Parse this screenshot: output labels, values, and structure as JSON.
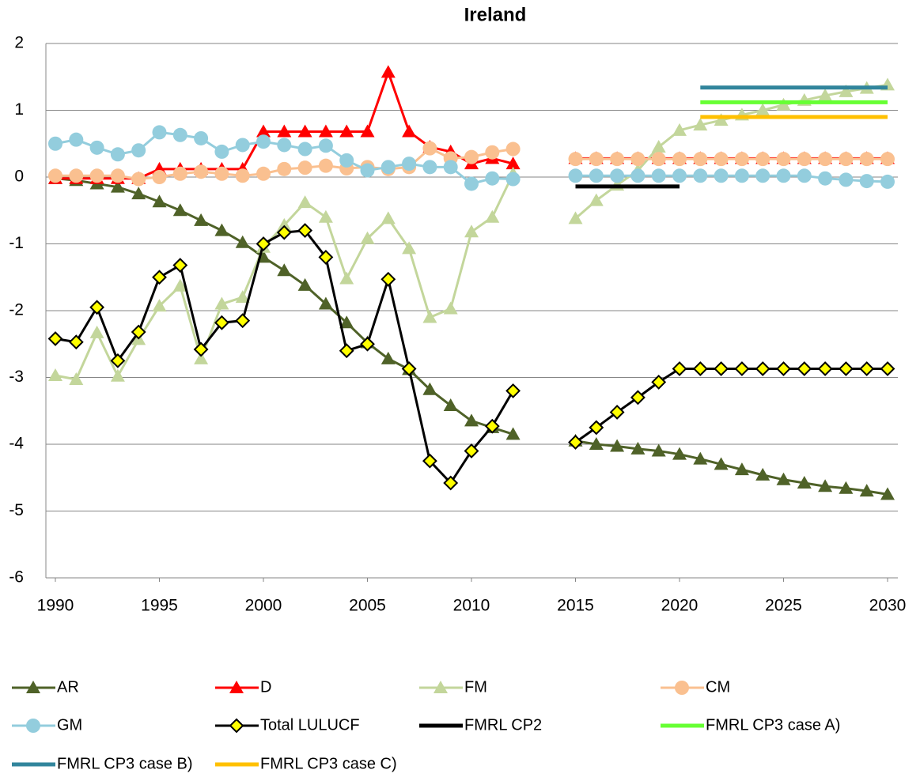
{
  "chart_data": {
    "type": "line",
    "title": "Ireland",
    "x": [
      1990,
      1991,
      1992,
      1993,
      1994,
      1995,
      1996,
      1997,
      1998,
      1999,
      2000,
      2001,
      2002,
      2003,
      2004,
      2005,
      2006,
      2007,
      2008,
      2009,
      2010,
      2011,
      2012,
      2013,
      2014,
      2015,
      2016,
      2017,
      2018,
      2019,
      2020,
      2021,
      2022,
      2023,
      2024,
      2025,
      2026,
      2027,
      2028,
      2029,
      2030
    ],
    "xlim": [
      1990,
      2030
    ],
    "xticks": [
      1990,
      1995,
      2000,
      2005,
      2010,
      2015,
      2020,
      2025,
      2030
    ],
    "ylim": [
      -6,
      2
    ],
    "yticks": [
      -6,
      -5,
      -4,
      -3,
      -2,
      -1,
      0,
      1,
      2
    ],
    "grid": true,
    "series": [
      {
        "name": "AR",
        "color": "#4f6228",
        "marker": "triangle",
        "values": [
          -0.02,
          -0.05,
          -0.1,
          -0.15,
          -0.25,
          -0.37,
          -0.5,
          -0.65,
          -0.8,
          -0.98,
          -1.2,
          -1.4,
          -1.62,
          -1.9,
          -2.18,
          -2.48,
          -2.72,
          -2.88,
          -3.18,
          -3.42,
          -3.65,
          -3.75,
          -3.85,
          null,
          null,
          -3.95,
          -4.0,
          -4.03,
          -4.07,
          -4.1,
          -4.15,
          -4.22,
          -4.3,
          -4.38,
          -4.46,
          -4.53,
          -4.58,
          -4.63,
          -4.66,
          -4.7,
          -4.75
        ]
      },
      {
        "name": "D",
        "color": "#ff0000",
        "marker": "triangle",
        "values": [
          -0.02,
          -0.02,
          -0.02,
          -0.02,
          -0.02,
          0.12,
          0.12,
          0.12,
          0.12,
          0.12,
          0.68,
          0.68,
          0.68,
          0.68,
          0.68,
          0.68,
          1.57,
          0.68,
          0.45,
          0.38,
          0.2,
          0.28,
          0.2,
          null,
          null,
          0.28,
          0.28,
          0.28,
          0.28,
          0.28,
          0.28,
          0.28,
          0.28,
          0.28,
          0.28,
          0.28,
          0.28,
          0.28,
          0.28,
          0.28,
          0.28
        ]
      },
      {
        "name": "FM",
        "color": "#c3d69b",
        "marker": "triangle",
        "values": [
          -2.97,
          -3.03,
          -2.33,
          -2.98,
          -2.43,
          -1.93,
          -1.63,
          -2.72,
          -1.9,
          -1.8,
          -1.05,
          -0.72,
          -0.38,
          -0.6,
          -1.52,
          -0.92,
          -0.62,
          -1.07,
          -2.1,
          -1.97,
          -0.82,
          -0.6,
          0.05,
          null,
          null,
          -0.62,
          -0.35,
          -0.12,
          0.1,
          0.45,
          0.7,
          0.78,
          0.85,
          0.93,
          1.0,
          1.08,
          1.15,
          1.22,
          1.28,
          1.33,
          1.38
        ]
      },
      {
        "name": "CM",
        "color": "#fac090",
        "marker": "circle",
        "values": [
          0.02,
          0.02,
          0.02,
          0.02,
          -0.03,
          0.0,
          0.05,
          0.08,
          0.05,
          0.02,
          0.05,
          0.12,
          0.14,
          0.17,
          0.13,
          0.15,
          0.12,
          0.15,
          0.43,
          0.28,
          0.3,
          0.37,
          0.42,
          null,
          null,
          0.27,
          0.27,
          0.27,
          0.27,
          0.27,
          0.27,
          0.27,
          0.27,
          0.27,
          0.27,
          0.27,
          0.27,
          0.27,
          0.27,
          0.27,
          0.27
        ]
      },
      {
        "name": "GM",
        "color": "#93cddd",
        "marker": "circle",
        "values": [
          0.5,
          0.56,
          0.44,
          0.34,
          0.4,
          0.67,
          0.63,
          0.58,
          0.38,
          0.48,
          0.53,
          0.48,
          0.42,
          0.47,
          0.25,
          0.1,
          0.15,
          0.2,
          0.15,
          0.15,
          -0.1,
          -0.02,
          -0.03,
          null,
          null,
          0.02,
          0.02,
          0.02,
          0.02,
          0.02,
          0.02,
          0.02,
          0.02,
          0.02,
          0.02,
          0.02,
          0.02,
          -0.02,
          -0.04,
          -0.06,
          -0.07
        ]
      },
      {
        "name": "Total LULUCF",
        "color": "#000000",
        "marker": "diamond",
        "marker_fill": "#ffff00",
        "values": [
          -2.42,
          -2.47,
          -1.95,
          -2.75,
          -2.32,
          -1.5,
          -1.32,
          -2.58,
          -2.18,
          -2.15,
          -1.0,
          -0.83,
          -0.8,
          -1.2,
          -2.6,
          -2.5,
          -1.53,
          -2.87,
          -4.25,
          -4.58,
          -4.1,
          -3.73,
          -3.2,
          null,
          null,
          -3.97,
          -3.75,
          -3.52,
          -3.3,
          -3.07,
          -2.87,
          -2.87,
          -2.87,
          -2.87,
          -2.87,
          -2.87,
          -2.87,
          -2.87,
          -2.87,
          -2.87,
          -2.87
        ]
      },
      {
        "name": "FMRL CP2",
        "color": "#000000",
        "marker": "none",
        "values": [
          null,
          null,
          null,
          null,
          null,
          null,
          null,
          null,
          null,
          null,
          null,
          null,
          null,
          null,
          null,
          null,
          null,
          null,
          null,
          null,
          null,
          null,
          null,
          null,
          null,
          -0.14,
          -0.14,
          -0.14,
          -0.14,
          -0.14,
          -0.14,
          null,
          null,
          null,
          null,
          null,
          null,
          null,
          null,
          null,
          null
        ]
      },
      {
        "name": "FMRL CP3 case A)",
        "color": "#66ff33",
        "marker": "none",
        "values": [
          null,
          null,
          null,
          null,
          null,
          null,
          null,
          null,
          null,
          null,
          null,
          null,
          null,
          null,
          null,
          null,
          null,
          null,
          null,
          null,
          null,
          null,
          null,
          null,
          null,
          null,
          null,
          null,
          null,
          null,
          null,
          1.12,
          1.12,
          1.12,
          1.12,
          1.12,
          1.12,
          1.12,
          1.12,
          1.12,
          1.12
        ]
      },
      {
        "name": "FMRL CP3 case B)",
        "color": "#31859c",
        "marker": "none",
        "values": [
          null,
          null,
          null,
          null,
          null,
          null,
          null,
          null,
          null,
          null,
          null,
          null,
          null,
          null,
          null,
          null,
          null,
          null,
          null,
          null,
          null,
          null,
          null,
          null,
          null,
          null,
          null,
          null,
          null,
          null,
          null,
          1.34,
          1.34,
          1.34,
          1.34,
          1.34,
          1.34,
          1.34,
          1.34,
          1.34,
          1.34
        ]
      },
      {
        "name": "FMRL CP3 case C)",
        "color": "#ffc000",
        "marker": "none",
        "values": [
          null,
          null,
          null,
          null,
          null,
          null,
          null,
          null,
          null,
          null,
          null,
          null,
          null,
          null,
          null,
          null,
          null,
          null,
          null,
          null,
          null,
          null,
          null,
          null,
          null,
          null,
          null,
          null,
          null,
          null,
          null,
          0.9,
          0.9,
          0.9,
          0.9,
          0.9,
          0.9,
          0.9,
          0.9,
          0.9,
          0.9
        ]
      }
    ]
  }
}
